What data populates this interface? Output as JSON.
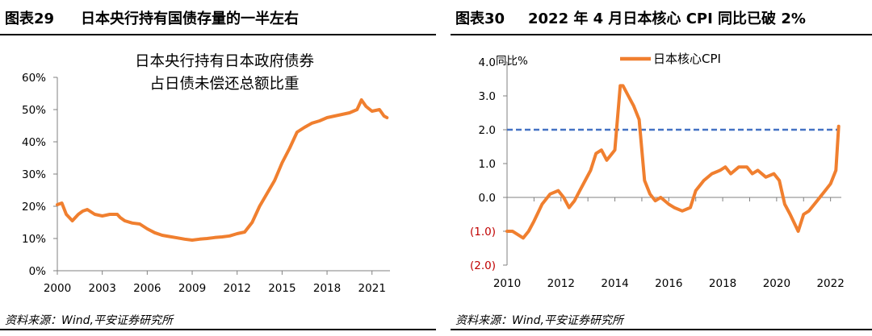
{
  "left": {
    "fig_num": "图表29",
    "fig_title": "日本央行持有国债存量的一半左右",
    "source": "资料来源：Wind,平安证券研究所"
  },
  "right": {
    "fig_num": "图表30",
    "fig_title": "2022 年 4 月日本核心 CPI 同比已破 2%",
    "source": "资料来源：Wind,平安证券研究所"
  },
  "chart_data": [
    {
      "type": "line",
      "title_lines": [
        "日本央行持有日本政府债券",
        "占日债未偿还总额比重"
      ],
      "xlabel": "",
      "ylabel": "",
      "xlim": [
        2000,
        2022.2
      ],
      "ylim": [
        0,
        60
      ],
      "x_ticks": [
        "2000",
        "2003",
        "2006",
        "2009",
        "2012",
        "2015",
        "2018",
        "2021"
      ],
      "y_ticks": [
        "0%",
        "10%",
        "20%",
        "30%",
        "40%",
        "50%",
        "60%"
      ],
      "grid": false,
      "line_color": "#f07f2f",
      "series": [
        {
          "name": "",
          "x": [
            2000.0,
            2000.3,
            2000.6,
            2001.0,
            2001.4,
            2001.7,
            2002.0,
            2002.5,
            2003.0,
            2003.5,
            2004.0,
            2004.2,
            2004.5,
            2005.0,
            2005.5,
            2006.0,
            2006.5,
            2007.0,
            2007.5,
            2008.0,
            2008.5,
            2009.0,
            2009.5,
            2010.0,
            2010.5,
            2011.0,
            2011.5,
            2012.0,
            2012.5,
            2013.0,
            2013.5,
            2014.0,
            2014.5,
            2015.0,
            2015.5,
            2016.0,
            2016.5,
            2017.0,
            2017.5,
            2018.0,
            2018.5,
            2019.0,
            2019.5,
            2020.0,
            2020.3,
            2020.6,
            2021.0,
            2021.5,
            2021.8,
            2022.0
          ],
          "y": [
            20.5,
            21.0,
            17.5,
            15.5,
            17.5,
            18.5,
            19.0,
            17.5,
            17.0,
            17.5,
            17.5,
            16.5,
            15.5,
            14.8,
            14.5,
            13.0,
            11.8,
            11.0,
            10.6,
            10.2,
            9.8,
            9.5,
            9.8,
            10.0,
            10.3,
            10.5,
            10.8,
            11.5,
            12.0,
            15.0,
            20.0,
            24.0,
            28.0,
            33.5,
            38.0,
            43.0,
            44.5,
            45.8,
            46.5,
            47.5,
            48.0,
            48.5,
            49.0,
            50.0,
            53.0,
            51.0,
            49.5,
            50.0,
            48.0,
            47.5
          ]
        }
      ]
    },
    {
      "type": "line",
      "title": "",
      "xlabel": "",
      "ylabel": "同比%",
      "xlim": [
        2010,
        2022.4
      ],
      "ylim": [
        -2,
        4
      ],
      "x_ticks": [
        "2010",
        "2012",
        "2014",
        "2016",
        "2018",
        "2020",
        "2022"
      ],
      "y_ticks": [
        "(2.0)",
        "(1.0)",
        "0.0",
        "1.0",
        "2.0",
        "3.0",
        "4.0"
      ],
      "grid": false,
      "legend": "top",
      "reference_line": {
        "y": 2.0,
        "style": "dashed",
        "color": "#4472c4"
      },
      "line_color": "#f07f2f",
      "negative_tick_color": "#c00000",
      "series": [
        {
          "name": "日本核心CPI",
          "x": [
            2010.0,
            2010.2,
            2010.4,
            2010.6,
            2010.8,
            2011.0,
            2011.3,
            2011.6,
            2011.9,
            2012.1,
            2012.3,
            2012.5,
            2012.7,
            2012.9,
            2013.1,
            2013.3,
            2013.5,
            2013.7,
            2013.9,
            2014.0,
            2014.2,
            2014.3,
            2014.5,
            2014.7,
            2014.9,
            2015.1,
            2015.3,
            2015.5,
            2015.7,
            2016.0,
            2016.2,
            2016.5,
            2016.8,
            2017.0,
            2017.3,
            2017.6,
            2017.9,
            2018.1,
            2018.3,
            2018.6,
            2018.9,
            2019.1,
            2019.3,
            2019.6,
            2019.9,
            2020.1,
            2020.3,
            2020.5,
            2020.8,
            2021.0,
            2021.2,
            2021.5,
            2021.8,
            2022.0,
            2022.2,
            2022.3
          ],
          "y": [
            -1.0,
            -1.0,
            -1.1,
            -1.2,
            -1.0,
            -0.7,
            -0.2,
            0.1,
            0.2,
            0.0,
            -0.3,
            -0.1,
            0.2,
            0.5,
            0.8,
            1.3,
            1.4,
            1.1,
            1.3,
            1.4,
            3.3,
            3.3,
            3.0,
            2.7,
            2.3,
            0.5,
            0.1,
            -0.1,
            0.0,
            -0.2,
            -0.3,
            -0.4,
            -0.3,
            0.2,
            0.5,
            0.7,
            0.8,
            0.9,
            0.7,
            0.9,
            0.9,
            0.7,
            0.8,
            0.6,
            0.7,
            0.5,
            -0.2,
            -0.5,
            -1.0,
            -0.5,
            -0.4,
            -0.1,
            0.2,
            0.4,
            0.8,
            2.1
          ]
        }
      ]
    }
  ]
}
